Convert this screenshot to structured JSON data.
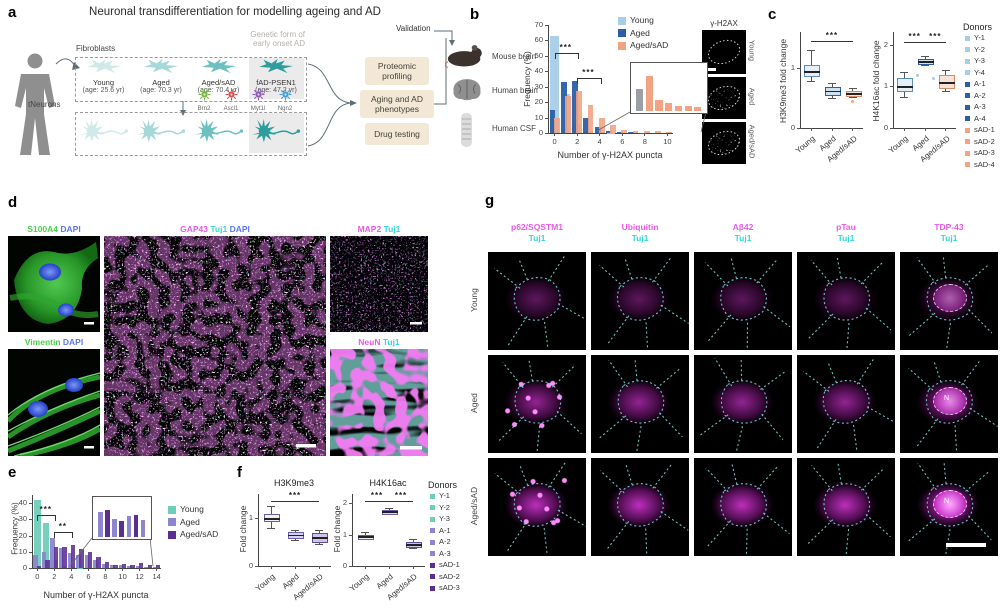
{
  "panels": {
    "a": "a",
    "b": "b",
    "c": "c",
    "d": "d",
    "e": "e",
    "f": "f",
    "g": "g"
  },
  "panel_a": {
    "title": "Neuronal transdifferentiation for modelling ageing and AD",
    "fibroblasts_label": "Fibroblasts",
    "tneurons_label": "tNeurons",
    "genetic_note": [
      "Genetic form of",
      "early onset AD"
    ],
    "cells": [
      {
        "name": "Young",
        "age": "(age: 25.6 yr)"
      },
      {
        "name": "Aged",
        "age": "(age: 70.3 yr)"
      },
      {
        "name": "Aged/sAD",
        "age": "(age: 70.4 yr)"
      },
      {
        "name": "fAD-PSEN1",
        "age": "(age: 47.2 yr)"
      }
    ],
    "factors": [
      {
        "name": "Brn2",
        "color": "#7ab648"
      },
      {
        "name": "Ascl1",
        "color": "#d94f4f"
      },
      {
        "name": "Myt1l",
        "color": "#8e5bb5"
      },
      {
        "name": "Ngn2",
        "color": "#3f9fd8"
      }
    ],
    "process_boxes": [
      "Proteomic profiling",
      "Aging and AD phenotypes",
      "Drug testing"
    ],
    "validation_label": "Validation",
    "validation_items": [
      "Mouse brain",
      "Human brain",
      "Human CSF"
    ]
  },
  "chart_data": [
    {
      "id": "b",
      "type": "bar",
      "ylabel": "Frequency (%)",
      "xlabel": "Number of γ-H2AX puncta",
      "ylim": [
        0,
        70
      ],
      "yticks": [
        0,
        10,
        20,
        30,
        40,
        50,
        60,
        70
      ],
      "x": [
        0,
        1,
        2,
        3,
        4,
        5,
        6,
        7,
        8,
        9,
        10
      ],
      "xticks": [
        0,
        2,
        4,
        6,
        8,
        10
      ],
      "legend_position": "top-right",
      "grid": false,
      "series": [
        {
          "name": "Young",
          "color": "#a8cde8",
          "values": [
            63,
            25,
            6,
            1.5,
            0.7,
            0.3,
            0,
            0,
            0,
            0,
            0
          ]
        },
        {
          "name": "Aged",
          "color": "#2a5fa5",
          "values": [
            15,
            33,
            34,
            10,
            4,
            1.2,
            0.6,
            0.4,
            0.3,
            0,
            0
          ]
        },
        {
          "name": "Aged/sAD",
          "color": "#f1a383",
          "values": [
            10,
            24,
            27,
            18.5,
            9.5,
            5,
            2.2,
            1.6,
            1.5,
            1.2,
            1
          ]
        }
      ],
      "sig": [
        {
          "from": 0,
          "to": 2,
          "label": "***",
          "y": 52
        },
        {
          "from": 2,
          "to": 4,
          "label": "***",
          "y": 36
        }
      ],
      "inset": {
        "magnified_range": "4-10 puncta",
        "max": 50,
        "bars": [
          {
            "v": 27,
            "c": "#9aa0a6"
          },
          {
            "v": 44,
            "c": "#f1a383"
          },
          {
            "v": 14,
            "c": "#f1a383"
          },
          {
            "v": 10,
            "c": "#f1a383"
          },
          {
            "v": 6,
            "c": "#f1a383"
          },
          {
            "v": 6,
            "c": "#f1a383"
          },
          {
            "v": 5,
            "c": "#f1a383"
          }
        ]
      }
    },
    {
      "id": "c1",
      "type": "box",
      "ylabel": "H3K9me3 fold change",
      "ylim": [
        0,
        1.6
      ],
      "yticks": [
        0,
        1
      ],
      "categories": [
        "Young",
        "Aged",
        "Aged/sAD"
      ],
      "boxes": [
        {
          "lo": 0.78,
          "q1": 0.88,
          "med": 0.95,
          "q3": 1.05,
          "hi": 1.3,
          "color": "#e3eef7",
          "border": "#5b8db8"
        },
        {
          "lo": 0.5,
          "q1": 0.56,
          "med": 0.62,
          "q3": 0.68,
          "hi": 0.75,
          "color": "#cfe0ee",
          "border": "#2a5fa5"
        },
        {
          "lo": 0.52,
          "q1": 0.55,
          "med": 0.58,
          "q3": 0.62,
          "hi": 0.66,
          "color": "#f9e3d8",
          "border": "#d88a64"
        }
      ],
      "points": [
        {
          "cat": 2,
          "dx": 0,
          "v": 0.45,
          "color": "#f1a383"
        }
      ],
      "sig": [
        {
          "from": 0,
          "to": 2,
          "label": "***",
          "y": 1.45
        }
      ]
    },
    {
      "id": "c2",
      "type": "box",
      "ylabel": "H4K16ac fold change",
      "ylim": [
        0,
        2.3
      ],
      "yticks": [
        0,
        1,
        2
      ],
      "categories": [
        "Young",
        "Aged",
        "Aged/sAD"
      ],
      "boxes": [
        {
          "lo": 0.75,
          "q1": 0.9,
          "med": 1.0,
          "q3": 1.2,
          "hi": 1.35,
          "color": "#e3eef7",
          "border": "#5b8db8"
        },
        {
          "lo": 1.5,
          "q1": 1.55,
          "med": 1.6,
          "q3": 1.66,
          "hi": 1.72,
          "color": "#cfe0ee",
          "border": "#2a5fa5"
        },
        {
          "lo": 0.88,
          "q1": 0.97,
          "med": 1.1,
          "q3": 1.28,
          "hi": 1.4,
          "color": "#f9e3d8",
          "border": "#d88a64"
        }
      ],
      "points": [
        {
          "cat": 1,
          "dx": -8,
          "v": 1.25,
          "color": "#a8cde8"
        },
        {
          "cat": 1,
          "dx": 8,
          "v": 1.18,
          "color": "#a8cde8"
        }
      ],
      "sig": [
        {
          "from": 0,
          "to": 1,
          "label": "***",
          "y": 2.05
        },
        {
          "from": 1,
          "to": 2,
          "label": "***",
          "y": 2.05
        }
      ]
    },
    {
      "id": "e",
      "type": "bar",
      "ylabel": "Frequency (%)",
      "xlabel": "Number of γ-H2AX puncta",
      "ylim": [
        0,
        45
      ],
      "yticks": [
        0,
        10,
        20,
        30,
        40
      ],
      "x": [
        0,
        1,
        2,
        3,
        4,
        5,
        6,
        7,
        8,
        9,
        10,
        11,
        12,
        13,
        14
      ],
      "xticks": [
        0,
        2,
        4,
        6,
        8,
        10,
        12,
        14
      ],
      "legend_position": "right",
      "grid": false,
      "series": [
        {
          "name": "Young",
          "color": "#6ecfb8",
          "values": [
            42,
            28,
            5,
            1.5,
            0.7,
            0.3,
            0,
            0,
            0,
            0,
            0,
            0,
            0,
            0,
            0
          ]
        },
        {
          "name": "Aged",
          "color": "#8d85cf",
          "values": [
            8,
            10,
            18.5,
            12.5,
            9,
            8,
            8,
            5,
            2.2,
            1.6,
            2,
            1.2,
            1,
            0.6,
            0.5
          ]
        },
        {
          "name": "Aged/sAD",
          "color": "#5b2f92",
          "values": [
            1.5,
            5,
            13,
            13,
            14,
            12,
            10,
            7,
            3.5,
            2,
            2.5,
            1.6,
            3,
            1.6,
            1.6
          ]
        }
      ],
      "sig": [
        {
          "from": 0,
          "to": 2,
          "label": "***",
          "y": 33
        },
        {
          "from": 2,
          "to": 4,
          "label": "**",
          "y": 22
        }
      ],
      "inset": {
        "magnified_range": "6-14 puncta",
        "max": 50,
        "bars": [
          {
            "v": 39,
            "c": "#8d85cf"
          },
          {
            "v": 42,
            "c": "#5b2f92"
          },
          {
            "v": 28,
            "c": "#8d85cf"
          },
          {
            "v": 25,
            "c": "#5b2f92"
          },
          {
            "v": 33,
            "c": "#8d85cf"
          },
          {
            "v": 34,
            "c": "#5b2f92"
          },
          {
            "v": 27,
            "c": "#8d85cf"
          }
        ]
      }
    },
    {
      "id": "f1",
      "type": "box",
      "title": "H3K9me3",
      "ylabel": "Fold change",
      "ylim": [
        0,
        1.5
      ],
      "yticks": [
        0,
        1
      ],
      "categories": [
        "Young",
        "Aged",
        "Aged/sAD"
      ],
      "boxes": [
        {
          "lo": 0.8,
          "q1": 0.95,
          "med": 1.0,
          "q3": 1.08,
          "hi": 1.25,
          "color": "#f1effa",
          "border": "#6b5fa8"
        },
        {
          "lo": 0.55,
          "q1": 0.6,
          "med": 0.65,
          "q3": 0.7,
          "hi": 0.76,
          "color": "#d8d2ee",
          "border": "#6b5fa8"
        },
        {
          "lo": 0.45,
          "q1": 0.52,
          "med": 0.6,
          "q3": 0.68,
          "hi": 0.75,
          "color": "#cdc2e8",
          "border": "#5b4d9e"
        }
      ],
      "points": [],
      "sig": [
        {
          "from": 0,
          "to": 2,
          "label": "***",
          "y": 1.35
        }
      ]
    },
    {
      "id": "f2",
      "type": "box",
      "title": "H4K16ac",
      "ylabel": "Fold change",
      "ylim": [
        0,
        2.3
      ],
      "yticks": [
        0,
        1,
        2
      ],
      "categories": [
        "Young",
        "Aged",
        "Aged/sAD"
      ],
      "boxes": [
        {
          "lo": 0.85,
          "q1": 0.9,
          "med": 0.95,
          "q3": 1.0,
          "hi": 1.1,
          "color": "#f1effa",
          "border": "#6b5fa8"
        },
        {
          "lo": 1.65,
          "q1": 1.7,
          "med": 1.75,
          "q3": 1.8,
          "hi": 1.85,
          "color": "#d8d2ee",
          "border": "#6b5fa8"
        },
        {
          "lo": 0.58,
          "q1": 0.63,
          "med": 0.7,
          "q3": 0.78,
          "hi": 0.85,
          "color": "#cdc2e8",
          "border": "#5b4d9e"
        }
      ],
      "points": [],
      "sig": [
        {
          "from": 0,
          "to": 1,
          "label": "***",
          "y": 2.08
        },
        {
          "from": 1,
          "to": 2,
          "label": "***",
          "y": 2.08
        }
      ]
    }
  ],
  "panel_b_images": {
    "title": "γ-H2AX",
    "rows": [
      "Young",
      "Aged",
      "Aged/sAD"
    ]
  },
  "panel_c": {
    "donors": {
      "title": "Donors",
      "items": [
        {
          "label": "Y-1",
          "color": "#a8cde8"
        },
        {
          "label": "Y-2",
          "color": "#a8cde8"
        },
        {
          "label": "Y-3",
          "color": "#a8cde8"
        },
        {
          "label": "Y-4",
          "color": "#a8cde8"
        },
        {
          "label": "A-1",
          "color": "#2a5fa5"
        },
        {
          "label": "A-2",
          "color": "#2a5fa5"
        },
        {
          "label": "A-3",
          "color": "#2a5fa5"
        },
        {
          "label": "A-4",
          "color": "#2a5fa5"
        },
        {
          "label": "sAD-1",
          "color": "#f1a383"
        },
        {
          "label": "sAD-2",
          "color": "#f1a383"
        },
        {
          "label": "sAD-3",
          "color": "#f1a383"
        },
        {
          "label": "sAD-4",
          "color": "#f1a383"
        }
      ]
    }
  },
  "panel_d": {
    "labels": [
      {
        "parts": [
          {
            "t": "S100A4",
            "c": "c-green"
          },
          {
            "t": "DAPI",
            "c": "c-blue"
          }
        ]
      },
      {
        "parts": [
          {
            "t": "GAP43",
            "c": "c-magenta"
          },
          {
            "t": "Tuj1",
            "c": "c-cyan"
          },
          {
            "t": "DAPI",
            "c": "c-blue"
          }
        ]
      },
      {
        "parts": [
          {
            "t": "MAP2",
            "c": "c-magenta"
          },
          {
            "t": "Tuj1",
            "c": "c-cyan"
          }
        ]
      },
      {
        "parts": [
          {
            "t": "Vimentin",
            "c": "c-green"
          },
          {
            "t": "DAPI",
            "c": "c-blue"
          }
        ]
      },
      {
        "parts": [
          {
            "t": "NeuN",
            "c": "c-magenta"
          },
          {
            "t": "Tuj1",
            "c": "c-cyan"
          }
        ]
      }
    ]
  },
  "panel_f": {
    "donors": {
      "title": "Donors",
      "items": [
        {
          "label": "Y-1",
          "color": "#6ecfb8"
        },
        {
          "label": "Y-2",
          "color": "#6ecfb8"
        },
        {
          "label": "Y-3",
          "color": "#6ecfb8"
        },
        {
          "label": "A-1",
          "color": "#8d85cf"
        },
        {
          "label": "A-2",
          "color": "#8d85cf"
        },
        {
          "label": "A-3",
          "color": "#8d85cf"
        },
        {
          "label": "sAD-1",
          "color": "#5b2f92"
        },
        {
          "label": "sAD-2",
          "color": "#5b2f92"
        },
        {
          "label": "sAD-3",
          "color": "#5b2f92"
        }
      ]
    }
  },
  "panel_g": {
    "columns": [
      {
        "line1": "p62/SQSTM1",
        "line2": "Tuj1"
      },
      {
        "line1": "Ubiquitin",
        "line2": "Tuj1"
      },
      {
        "line1": "Aβ42",
        "line2": "Tuj1"
      },
      {
        "line1": "pTau",
        "line2": "Tuj1"
      },
      {
        "line1": "TDP-43",
        "line2": "Tuj1"
      }
    ],
    "rows": [
      "Young",
      "Aged",
      "Aged/sAD"
    ],
    "nucleus_label": "N"
  }
}
